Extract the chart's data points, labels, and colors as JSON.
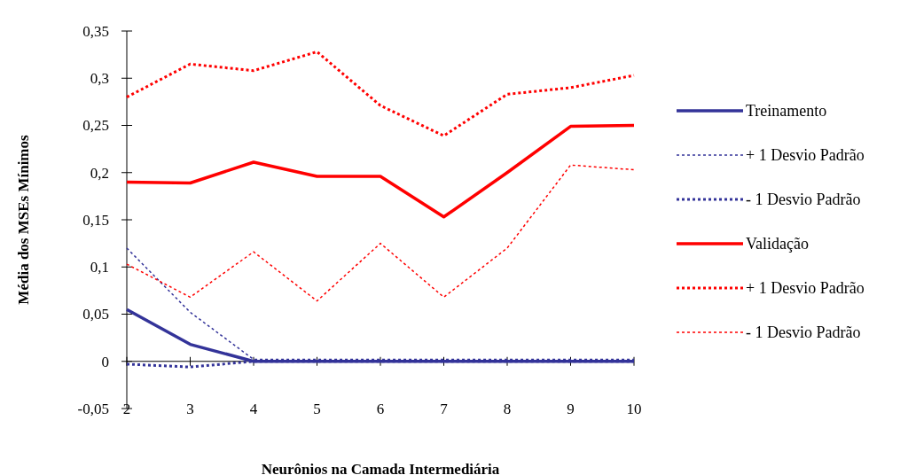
{
  "chart_data": {
    "type": "line",
    "xlabel": "Neurônios na Camada Intermediária",
    "ylabel": "Média dos MSEs Mínimos",
    "categories": [
      "2",
      "3",
      "4",
      "5",
      "6",
      "7",
      "8",
      "9",
      "10"
    ],
    "ylim": [
      -0.05,
      0.35
    ],
    "yticks": [
      {
        "value": -0.05,
        "label": "-0,05"
      },
      {
        "value": 0,
        "label": "0"
      },
      {
        "value": 0.05,
        "label": "0,05"
      },
      {
        "value": 0.1,
        "label": "0,1"
      },
      {
        "value": 0.15,
        "label": "0,15"
      },
      {
        "value": 0.2,
        "label": "0,2"
      },
      {
        "value": 0.25,
        "label": "0,25"
      },
      {
        "value": 0.3,
        "label": "0,3"
      },
      {
        "value": 0.35,
        "label": "0,35"
      }
    ],
    "grid": false,
    "legend": "right",
    "marker": "none",
    "series": [
      {
        "name": "Treinamento",
        "color": "#333399",
        "line_style": "solid",
        "values": [
          0.055,
          0.018,
          0,
          0,
          0,
          0,
          0,
          0,
          0
        ]
      },
      {
        "name": "+ 1 Desvio Padrão",
        "color": "#333399",
        "line_style": "dashed",
        "values": [
          0.12,
          0.052,
          0.002,
          0.002,
          0.002,
          0.002,
          0.002,
          0.002,
          0.002
        ]
      },
      {
        "name": "- 1 Desvio Padrão",
        "color": "#333399",
        "line_style": "dotted",
        "values": [
          -0.003,
          -0.006,
          0,
          0,
          0,
          0,
          0,
          0,
          0
        ]
      },
      {
        "name": "Validação",
        "color": "#ff0000",
        "line_style": "solid",
        "values": [
          0.19,
          0.189,
          0.211,
          0.196,
          0.196,
          0.153,
          0.2,
          0.249,
          0.25
        ]
      },
      {
        "name": "+ 1 Desvio Padrão",
        "color": "#ff0000",
        "line_style": "dotted",
        "values": [
          0.28,
          0.315,
          0.308,
          0.328,
          0.271,
          0.239,
          0.283,
          0.29,
          0.303
        ]
      },
      {
        "name": "- 1 Desvio Padrão",
        "color": "#ff0000",
        "line_style": "dashed",
        "values": [
          0.103,
          0.068,
          0.116,
          0.064,
          0.125,
          0.068,
          0.12,
          0.208,
          0.203
        ]
      }
    ]
  }
}
